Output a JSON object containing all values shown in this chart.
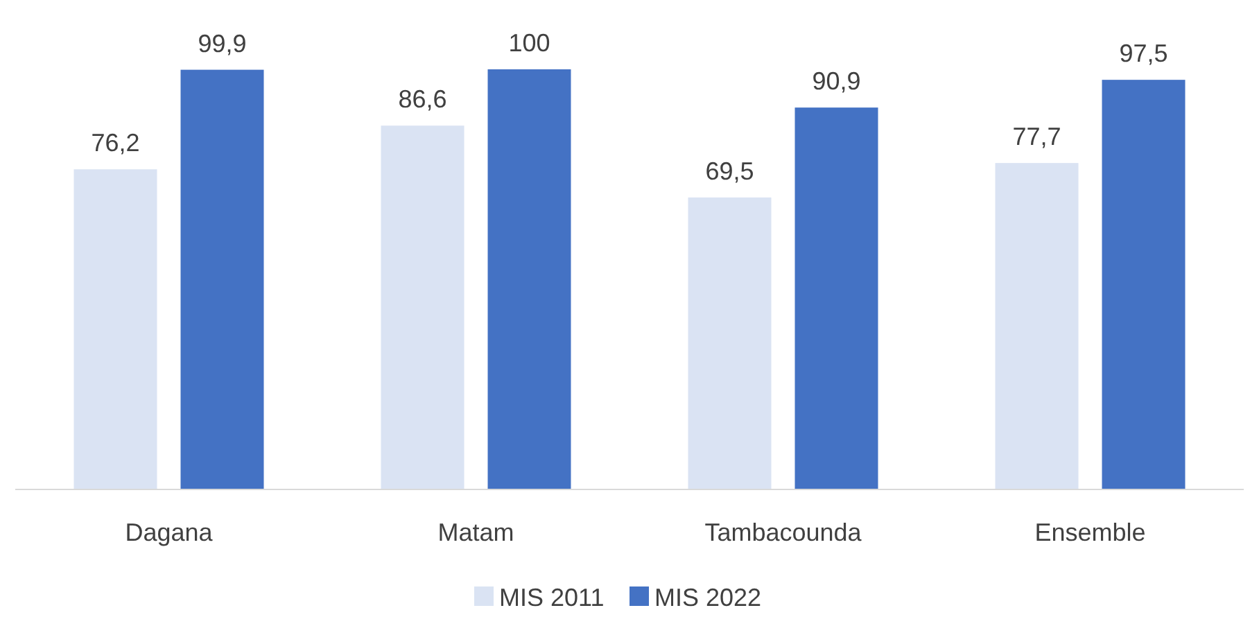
{
  "chart_data": {
    "type": "bar",
    "categories": [
      "Dagana",
      "Matam",
      "Tambacounda",
      "Ensemble"
    ],
    "series": [
      {
        "name": "MIS 2011",
        "color": "#dae3f3",
        "values": [
          76.2,
          86.6,
          69.5,
          77.7
        ],
        "value_labels": [
          "76,2",
          "86,6",
          "69,5",
          "77,7"
        ]
      },
      {
        "name": "MIS 2022",
        "color": "#4472c4",
        "values": [
          99.9,
          100,
          90.9,
          97.5
        ],
        "value_labels": [
          "99,9",
          "100",
          "90,9",
          "97,5"
        ]
      }
    ],
    "legend": "bottom"
  }
}
